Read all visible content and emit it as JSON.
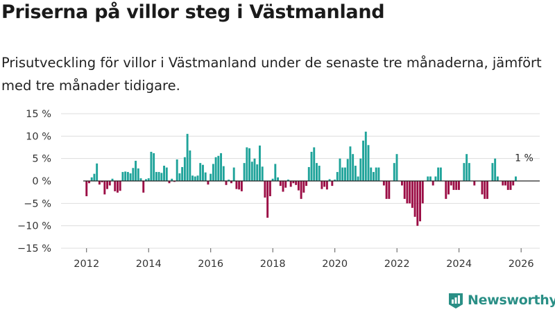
{
  "title": "Priserna på villor steg i Västmanland",
  "subtitle": "Prisutveckling för villor i Västmanland under de senaste tre månaderna, jämfört med tre månader tidigare.",
  "brand": {
    "name": "Newsworthy"
  },
  "colors": {
    "positive": "#1fa39a",
    "negative": "#9b0d45",
    "grid": "#dddddd",
    "baseline": "#222222",
    "brand": "#2a8f86"
  },
  "chart_data": {
    "type": "bar",
    "title": "Priserna på villor steg i Västmanland",
    "xlabel": "",
    "ylabel": "",
    "unit": "%",
    "ylim": [
      -15,
      15
    ],
    "xlim": [
      2011.0,
      2026.6
    ],
    "yticks": [
      15,
      10,
      5,
      0,
      -5,
      -10,
      -15
    ],
    "ytick_labels": [
      "15 %",
      "10 %",
      "5 %",
      "0 %",
      "−5 %",
      "−10 %",
      "−15 %"
    ],
    "xticks": [
      2012,
      2014,
      2016,
      2018,
      2020,
      2022,
      2024,
      2026
    ],
    "xtick_labels": [
      "2012",
      "2014",
      "2016",
      "2018",
      "2020",
      "2022",
      "2024",
      "2026"
    ],
    "annotation": {
      "text": "1 %",
      "x": 2026.0,
      "y": 1
    },
    "start": 2012.0,
    "step": 0.0833,
    "values": [
      -3.4,
      -0.5,
      0.8,
      1.6,
      3.9,
      -0.8,
      -0.3,
      -3.0,
      -1.8,
      -1.0,
      0.5,
      -2.3,
      -2.6,
      -2.2,
      2.0,
      2.1,
      2.0,
      1.7,
      2.9,
      4.5,
      2.8,
      0.6,
      -2.6,
      0.4,
      0.6,
      6.5,
      6.2,
      2.0,
      2.0,
      1.8,
      3.4,
      3.0,
      -0.5,
      0.5,
      -0.2,
      4.8,
      1.7,
      3.1,
      5.3,
      10.5,
      6.8,
      1.2,
      1.0,
      1.2,
      4.0,
      3.6,
      1.9,
      -0.8,
      1.6,
      3.8,
      5.3,
      5.6,
      6.2,
      3.3,
      -0.9,
      0.3,
      -0.5,
      3.0,
      -1.8,
      -1.9,
      -2.3,
      4.0,
      7.5,
      7.3,
      4.3,
      5.0,
      3.7,
      7.9,
      3.2,
      -3.7,
      -8.2,
      -3.4,
      0.5,
      3.8,
      0.8,
      -1.1,
      -2.4,
      -1.5,
      0.3,
      -1.3,
      -0.5,
      -0.9,
      -2.1,
      -4.0,
      -2.6,
      -1.1,
      3.1,
      6.5,
      7.5,
      4.0,
      3.4,
      -1.8,
      -1.3,
      -1.9,
      0.4,
      -1.1,
      0.3,
      2.0,
      5.0,
      3.0,
      3.0,
      4.9,
      7.7,
      6.0,
      3.4,
      1.0,
      5.0,
      9.0,
      11.0,
      8.0,
      3.0,
      2.0,
      3.0,
      3.0,
      0.0,
      -1.0,
      -4.0,
      -4.0,
      0.0,
      4.0,
      6.0,
      0.0,
      -1.0,
      -4.0,
      -5.0,
      -5.0,
      -6.0,
      -8.0,
      -10.0,
      -9.0,
      -5.0,
      0.0,
      1.0,
      1.0,
      -1.0,
      1.0,
      3.0,
      3.0,
      0.0,
      -4.0,
      -3.0,
      -1.0,
      -2.0,
      -2.0,
      -2.0,
      0.0,
      4.0,
      6.0,
      4.0,
      0.0,
      -1.0,
      0.0,
      0.0,
      -3.0,
      -4.0,
      -4.0,
      0.0,
      4.0,
      5.0,
      1.0,
      0.0,
      -1.0,
      -1.0,
      -2.0,
      -2.0,
      -1.0,
      1.0
    ]
  }
}
